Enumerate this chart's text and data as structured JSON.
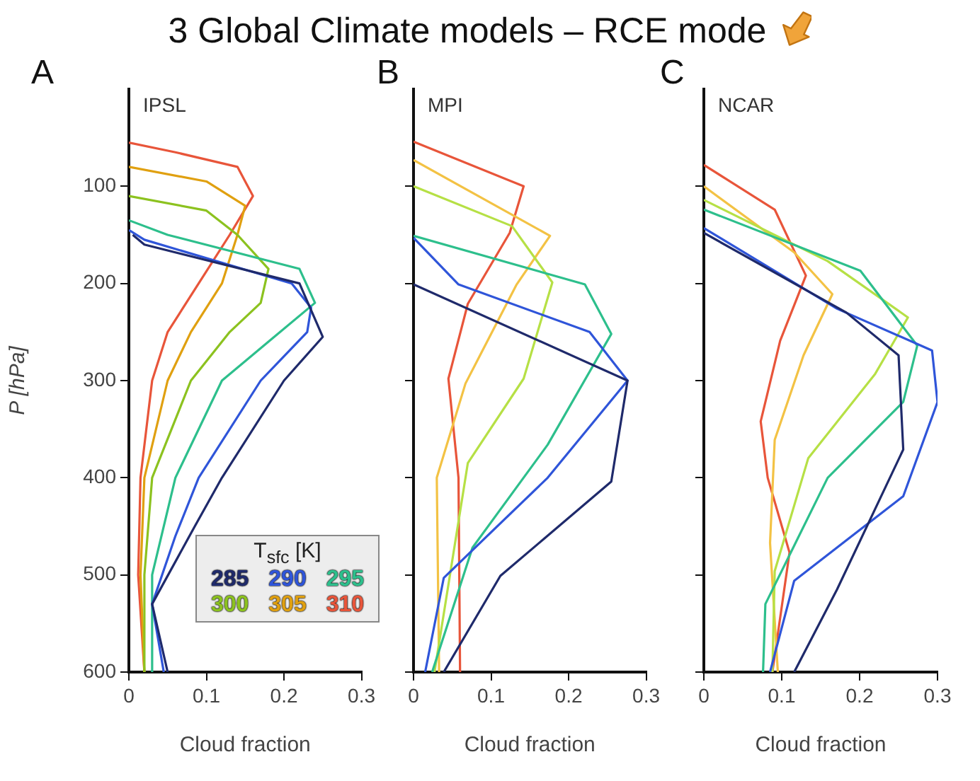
{
  "chart_data": [
    {
      "type": "line",
      "title": "3 Global Climate models – RCE mode",
      "annotations": [
        "A",
        "IPSL"
      ],
      "xlabel": "Cloud fraction",
      "ylabel": "P [hPa]",
      "xlim": [
        0,
        0.3
      ],
      "xticks": [
        0,
        0.1,
        0.2,
        0.3
      ],
      "ylim": [
        600,
        0
      ],
      "yticks": [
        100,
        200,
        300,
        400,
        500,
        600
      ],
      "grid": false,
      "legend": "bottom right",
      "legend_title": "T$_{sfc}$ [K]",
      "series": [
        {
          "name": "285",
          "color": "#1f2a6b",
          "x": [
            0.005,
            0.02,
            0.22,
            0.25,
            0.2,
            0.12,
            0.085,
            0.03,
            0.05
          ],
          "values": [
            150,
            160,
            200,
            255,
            300,
            400,
            450,
            530,
            600
          ]
        },
        {
          "name": "290",
          "color": "#2f55d9",
          "x": [
            0,
            0.02,
            0.21,
            0.235,
            0.23,
            0.17,
            0.09,
            0.06,
            0.03,
            0.045
          ],
          "values": [
            145,
            155,
            200,
            225,
            250,
            300,
            400,
            460,
            530,
            600
          ]
        },
        {
          "name": "295",
          "color": "#2dbf8c",
          "x": [
            0,
            0.05,
            0.22,
            0.24,
            0.18,
            0.12,
            0.06,
            0.03,
            0.03
          ],
          "values": [
            135,
            150,
            185,
            220,
            260,
            300,
            400,
            500,
            600
          ]
        },
        {
          "name": "300",
          "color": "#8cc21f",
          "x": [
            0,
            0.1,
            0.14,
            0.18,
            0.17,
            0.13,
            0.08,
            0.03,
            0.02,
            0.02
          ],
          "values": [
            110,
            125,
            150,
            185,
            220,
            250,
            300,
            400,
            500,
            600
          ]
        },
        {
          "name": "305",
          "color": "#e0a010",
          "x": [
            0,
            0.1,
            0.15,
            0.14,
            0.12,
            0.08,
            0.05,
            0.02,
            0.015,
            0.02
          ],
          "values": [
            80,
            95,
            120,
            150,
            200,
            250,
            300,
            400,
            500,
            600
          ]
        },
        {
          "name": "310",
          "color": "#e8553a",
          "x": [
            0,
            0.06,
            0.14,
            0.16,
            0.13,
            0.09,
            0.05,
            0.03,
            0.015,
            0.012,
            0.02
          ],
          "values": [
            55,
            65,
            80,
            110,
            150,
            200,
            250,
            300,
            400,
            500,
            600
          ]
        }
      ]
    },
    {
      "type": "line",
      "annotations": [
        "B",
        "MPI"
      ],
      "xlabel": "Cloud fraction",
      "xlim": [
        0,
        0.3
      ],
      "xticks": [
        0,
        0.1,
        0.2,
        0.3
      ],
      "ylim": [
        600,
        0
      ],
      "yticks": [
        100,
        200,
        300,
        400,
        500,
        600
      ],
      "grid": false,
      "tick_labels": "x",
      "series": [
        {
          "color": "#1f2a6b",
          "x": [
            0,
            0.276,
            0.255,
            0.112,
            0.039
          ],
          "values": [
            201,
            300,
            404,
            501,
            600
          ]
        },
        {
          "color": "#2f55d9",
          "x": [
            0,
            0.058,
            0.227,
            0.276,
            0.173,
            0.039,
            0.015
          ],
          "values": [
            153,
            201,
            250,
            300,
            400,
            503,
            600
          ]
        },
        {
          "color": "#2dbf8c",
          "x": [
            0,
            0.221,
            0.255,
            0.173,
            0.076,
            0.024
          ],
          "values": [
            151,
            201,
            252,
            366,
            472,
            600
          ]
        },
        {
          "color": "#b6e045",
          "x": [
            0,
            0.127,
            0.179,
            0.142,
            0.07,
            0.027
          ],
          "values": [
            100,
            141,
            199,
            298,
            385,
            600
          ]
        },
        {
          "color": "#f3c244",
          "x": [
            0,
            0.176,
            0.133,
            0.067,
            0.03,
            0.033
          ],
          "values": [
            73,
            151,
            201,
            303,
            400,
            600
          ]
        },
        {
          "color": "#e8553a",
          "x": [
            0,
            0.142,
            0.124,
            0.07,
            0.045,
            0.058,
            0.06
          ],
          "values": [
            54,
            100,
            148,
            221,
            298,
            400,
            600
          ]
        }
      ]
    },
    {
      "type": "line",
      "annotations": [
        "C",
        "NCAR"
      ],
      "xlabel": "Cloud fraction",
      "xlim": [
        0,
        0.3
      ],
      "xticks": [
        0,
        0.1,
        0.2,
        0.3
      ],
      "ylim": [
        600,
        0
      ],
      "yticks": [
        100,
        200,
        300,
        400,
        500,
        600
      ],
      "grid": false,
      "tick_labels": "x",
      "series": [
        {
          "color": "#1f2a6b",
          "x": [
            0,
            0.183,
            0.25,
            0.256,
            0.171,
            0.116
          ],
          "values": [
            148,
            230,
            274,
            371,
            515,
            600
          ]
        },
        {
          "color": "#2f55d9",
          "x": [
            0,
            0.171,
            0.293,
            0.3,
            0.256,
            0.116,
            0.085
          ],
          "values": [
            143,
            226,
            269,
            322,
            419,
            506,
            600
          ]
        },
        {
          "color": "#2dbf8c",
          "x": [
            0,
            0.201,
            0.274,
            0.256,
            0.159,
            0.079,
            0.076
          ],
          "values": [
            124,
            187,
            264,
            322,
            400,
            530,
            600
          ]
        },
        {
          "color": "#b6e045",
          "x": [
            0,
            0.159,
            0.262,
            0.22,
            0.134,
            0.091,
            0.088
          ],
          "values": [
            114,
            177,
            235,
            293,
            380,
            496,
            600
          ]
        },
        {
          "color": "#f3c244",
          "x": [
            0,
            0.116,
            0.165,
            0.128,
            0.091,
            0.085,
            0.095
          ],
          "values": [
            100,
            168,
            211,
            274,
            361,
            467,
            600
          ]
        },
        {
          "color": "#e8553a",
          "x": [
            0,
            0.091,
            0.131,
            0.098,
            0.073,
            0.082,
            0.11,
            0.088
          ],
          "values": [
            78,
            124,
            192,
            259,
            342,
            400,
            477,
            600
          ]
        }
      ]
    }
  ]
}
